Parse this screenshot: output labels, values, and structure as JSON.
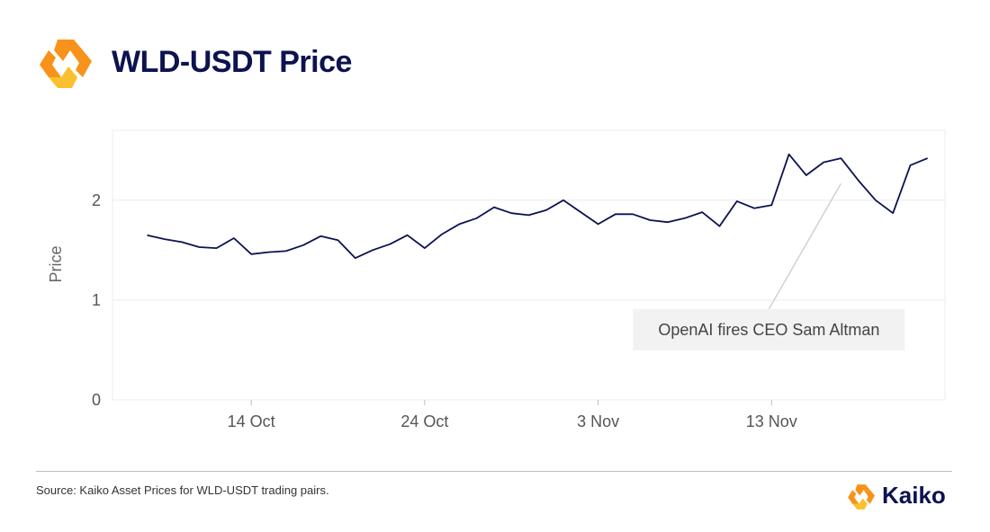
{
  "title": "WLD-USDT Price",
  "source": "Source: Kaiko Asset Prices for WLD-USDT trading pairs.",
  "brand": "Kaiko",
  "colors": {
    "logo_orange": "#f7931a",
    "logo_yellow": "#fbc02d",
    "title": "#0d1250",
    "line": "#0d1250",
    "grid": "#ececec"
  },
  "chart_data": {
    "type": "line",
    "title": "WLD-USDT Price",
    "xlabel": "",
    "ylabel": "Price",
    "ylim": [
      0,
      2.7
    ],
    "xlim": [
      "2023-10-06",
      "2023-11-23"
    ],
    "grid": true,
    "yticks": [
      0,
      1,
      2
    ],
    "xticks": [
      {
        "date": "2023-10-14",
        "label": "14 Oct"
      },
      {
        "date": "2023-10-24",
        "label": "24 Oct"
      },
      {
        "date": "2023-11-03",
        "label": "3 Nov"
      },
      {
        "date": "2023-11-13",
        "label": "13 Nov"
      }
    ],
    "series": [
      {
        "name": "",
        "x": [
          "2023-10-08",
          "2023-10-09",
          "2023-10-10",
          "2023-10-11",
          "2023-10-12",
          "2023-10-13",
          "2023-10-14",
          "2023-10-15",
          "2023-10-16",
          "2023-10-17",
          "2023-10-18",
          "2023-10-19",
          "2023-10-20",
          "2023-10-21",
          "2023-10-22",
          "2023-10-23",
          "2023-10-24",
          "2023-10-25",
          "2023-10-26",
          "2023-10-27",
          "2023-10-28",
          "2023-10-29",
          "2023-10-30",
          "2023-10-31",
          "2023-11-01",
          "2023-11-02",
          "2023-11-03",
          "2023-11-04",
          "2023-11-05",
          "2023-11-06",
          "2023-11-07",
          "2023-11-08",
          "2023-11-09",
          "2023-11-10",
          "2023-11-11",
          "2023-11-12",
          "2023-11-13",
          "2023-11-14",
          "2023-11-15",
          "2023-11-16",
          "2023-11-17",
          "2023-11-18",
          "2023-11-19",
          "2023-11-20",
          "2023-11-21",
          "2023-11-22"
        ],
        "y": [
          1.65,
          1.61,
          1.58,
          1.53,
          1.52,
          1.62,
          1.46,
          1.48,
          1.49,
          1.55,
          1.64,
          1.6,
          1.42,
          1.5,
          1.56,
          1.65,
          1.52,
          1.66,
          1.76,
          1.82,
          1.93,
          1.87,
          1.85,
          1.9,
          2.0,
          1.88,
          1.76,
          1.86,
          1.86,
          1.8,
          1.78,
          1.82,
          1.88,
          1.74,
          1.99,
          1.92,
          1.95,
          2.46,
          2.25,
          2.38,
          2.42,
          2.2,
          2.0,
          1.87,
          2.35,
          2.42
        ]
      }
    ],
    "annotations": [
      {
        "text": "OpenAI fires CEO Sam Altman",
        "x": "2023-11-17",
        "y": 2.22
      }
    ]
  }
}
